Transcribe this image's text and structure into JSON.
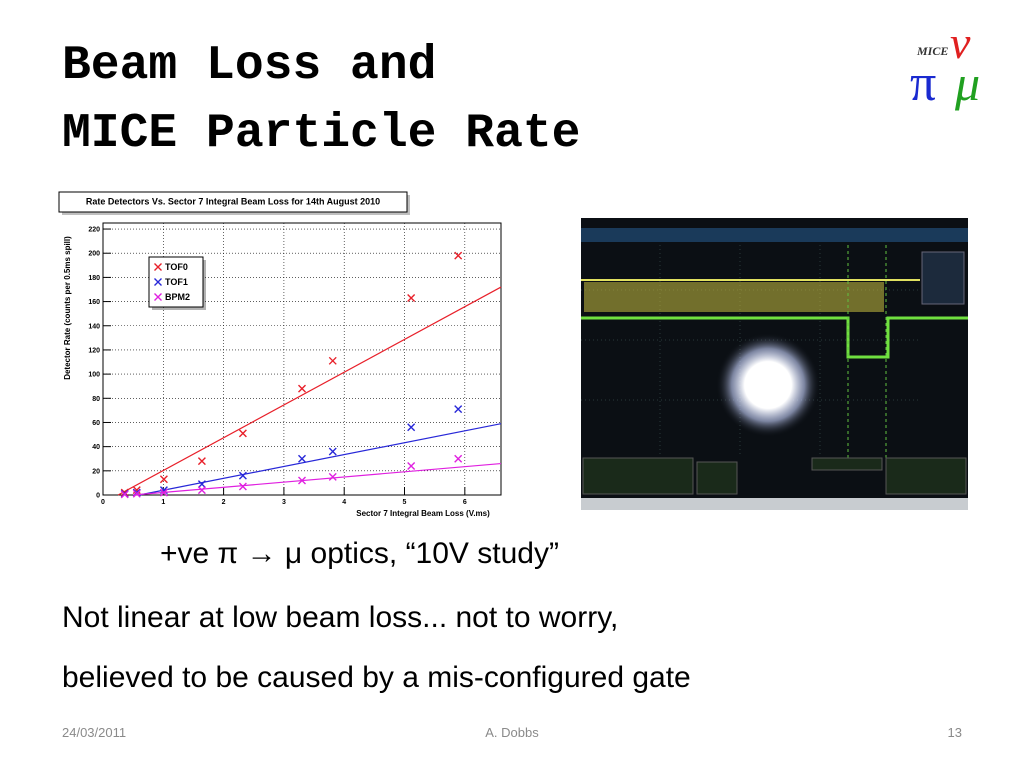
{
  "slide": {
    "title": [
      "Beam Loss and",
      "MICE Particle Rate"
    ],
    "body": [
      "+ve π → μ optics, “10V study”",
      "Not linear at low beam loss... not to worry,",
      "believed to be caused by a mis-configured gate"
    ],
    "footer": {
      "date": "24/03/2011",
      "author": "A. Dobbs",
      "page": "13"
    },
    "logo": {
      "name": "MICE",
      "symbols": [
        "π",
        "ν",
        "μ"
      ]
    }
  },
  "chart_data": {
    "type": "scatter",
    "title": "Rate Detectors Vs. Sector 7 Integral Beam Loss for 14th August 2010",
    "x_label": "Sector 7 Integral Beam Loss (V.ms)",
    "y_label": "Detector Rate (counts per 0.5ms spill)",
    "xlim": [
      0,
      6.6
    ],
    "ylim": [
      0,
      225
    ],
    "xticks": [
      0,
      1,
      2,
      3,
      4,
      5,
      6
    ],
    "yticks": [
      0,
      20,
      40,
      60,
      80,
      100,
      120,
      140,
      160,
      180,
      200,
      220
    ],
    "grid": true,
    "legend": "upper left",
    "series": [
      {
        "name": "TOF0",
        "color": "#e8202a",
        "x": [
          0.36,
          0.56,
          1.01,
          1.64,
          2.32,
          3.3,
          3.81,
          5.11,
          5.89
        ],
        "values": [
          2,
          4,
          13,
          28,
          51,
          88,
          111,
          163,
          198
        ],
        "fit_x": [
          0.25,
          6.6
        ],
        "fit_y": [
          0,
          172
        ]
      },
      {
        "name": "TOF1",
        "color": "#2828d8",
        "x": [
          0.36,
          0.56,
          1.01,
          1.64,
          2.32,
          3.3,
          3.81,
          5.11,
          5.89
        ],
        "values": [
          1,
          2,
          4,
          9,
          16,
          30,
          36,
          56,
          71
        ],
        "fit_x": [
          0.6,
          6.6
        ],
        "fit_y": [
          0,
          59
        ]
      },
      {
        "name": "BPM2",
        "color": "#e020e0",
        "x": [
          0.36,
          0.56,
          1.01,
          1.64,
          2.32,
          3.3,
          3.81,
          5.11,
          5.89
        ],
        "values": [
          0.5,
          1,
          2,
          4,
          7,
          12,
          15,
          24,
          30
        ],
        "fit_x": [
          0.5,
          6.6
        ],
        "fit_y": [
          0,
          26
        ]
      }
    ]
  }
}
